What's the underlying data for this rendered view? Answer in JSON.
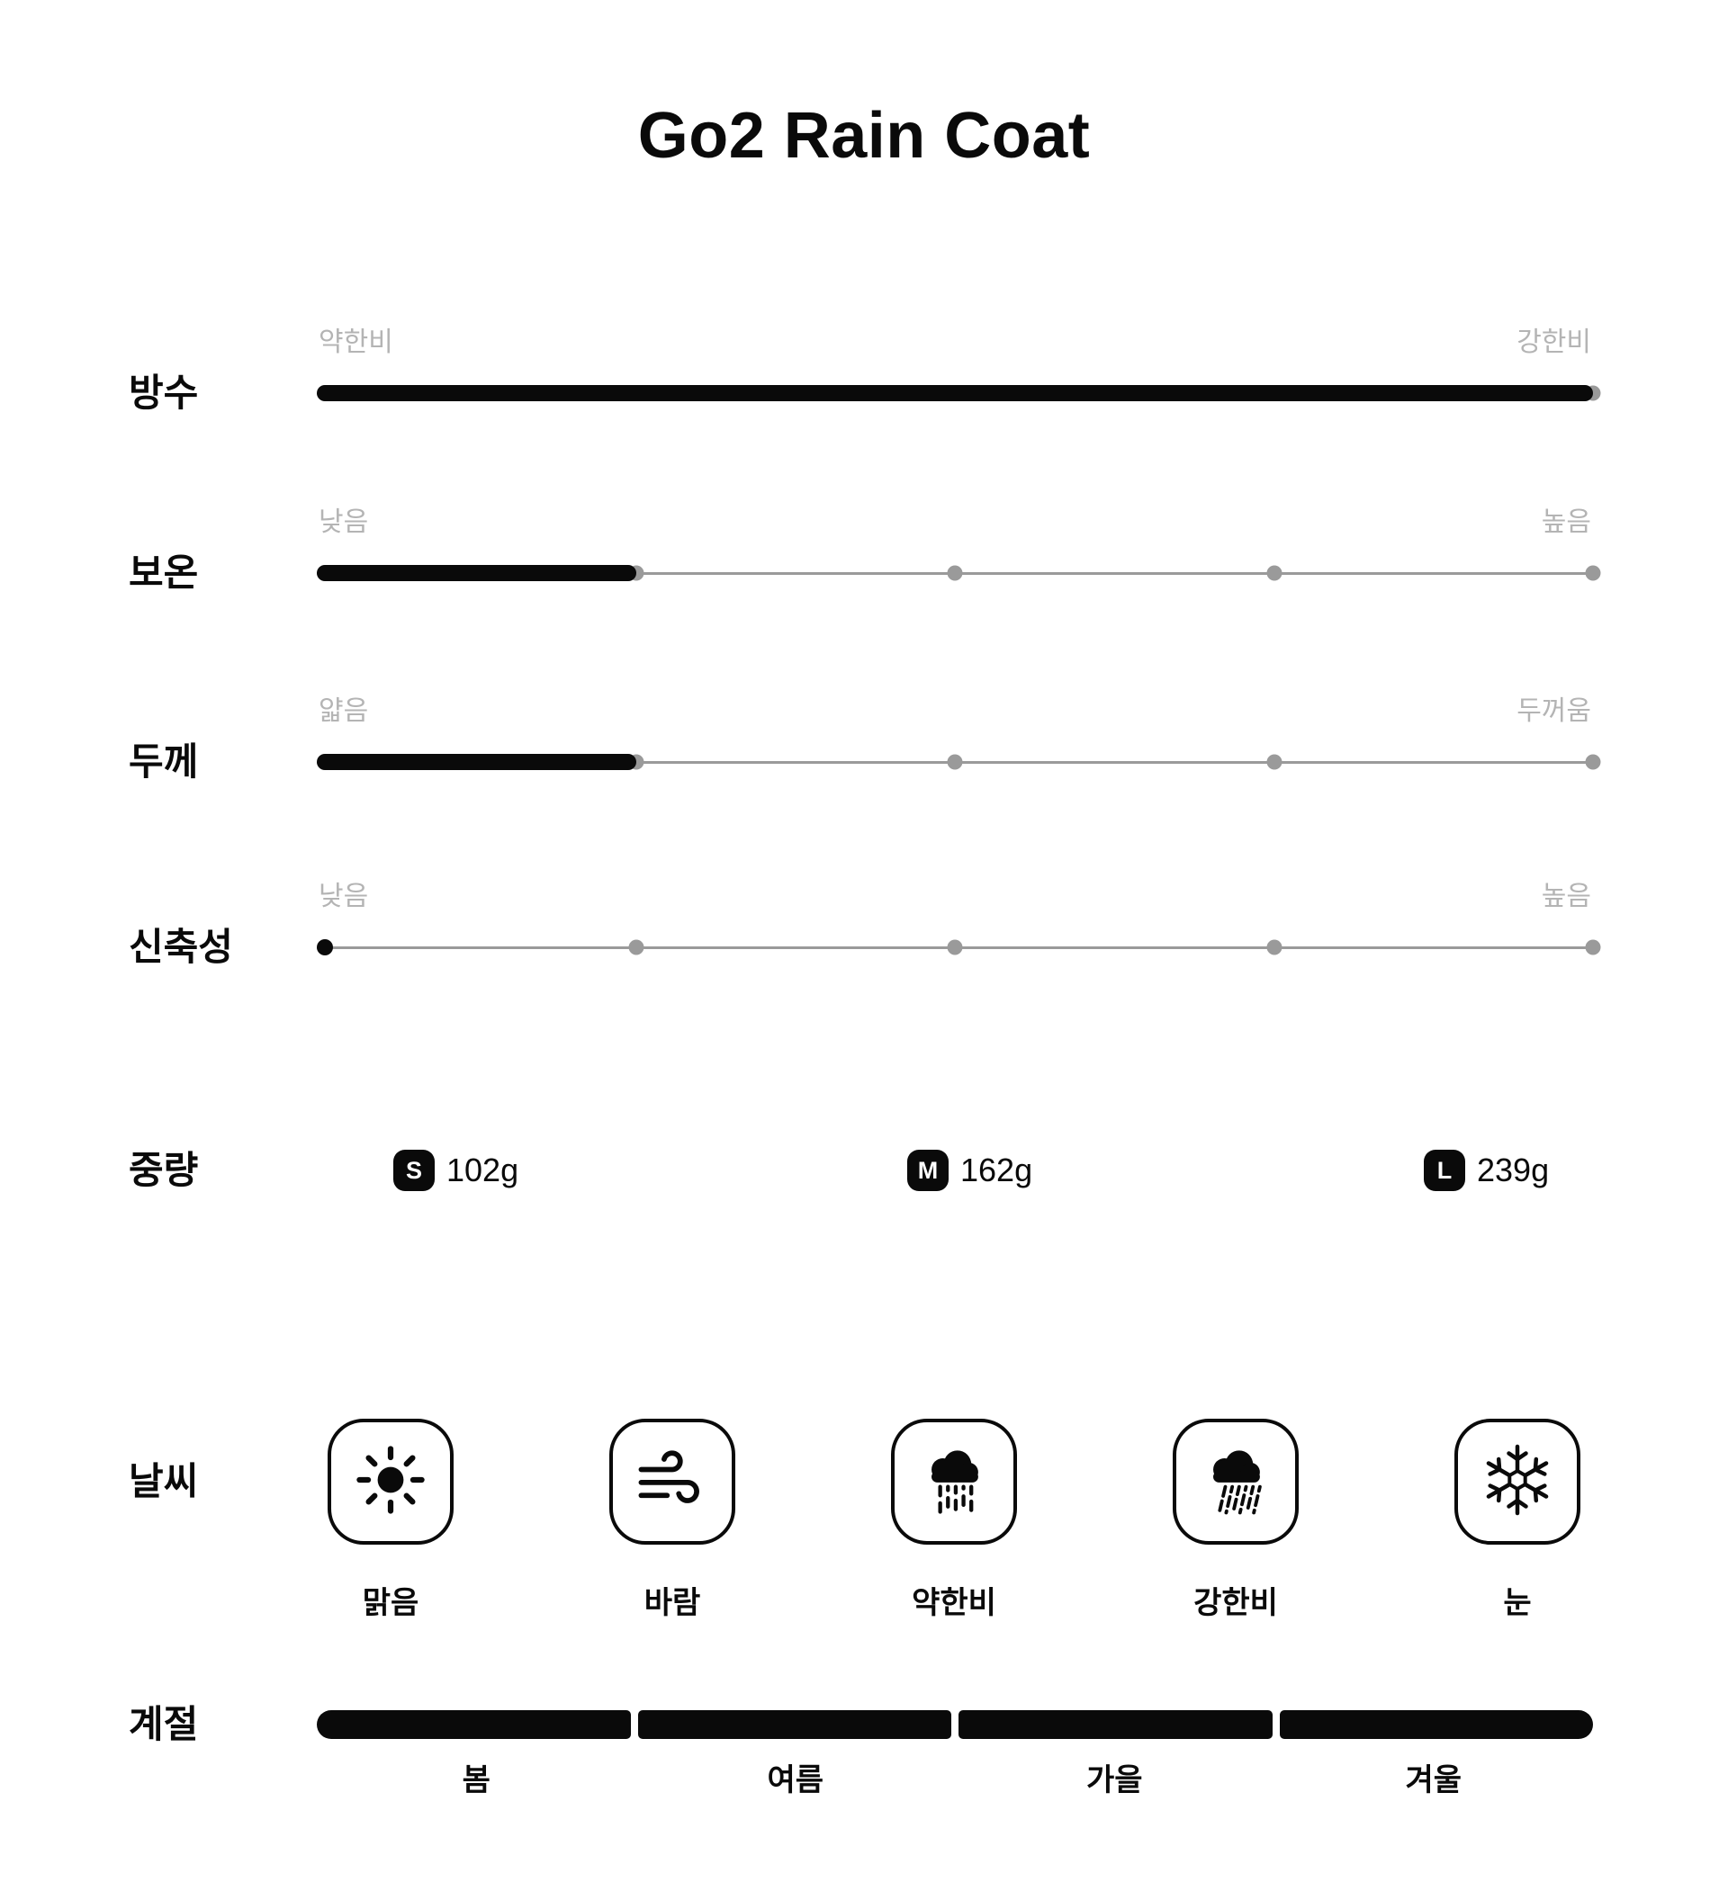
{
  "title": "Go2 Rain Coat",
  "colors": {
    "bar_black": "#0a0a0a",
    "track_gray": "#9a9a9a",
    "endpoint_label_gray": "#b4b4b4",
    "background": "#ffffff"
  },
  "ratings": [
    {
      "id": "waterproof",
      "label": "방수",
      "min_label": "약한비",
      "max_label": "강한비",
      "value": 5,
      "max": 5
    },
    {
      "id": "warmth",
      "label": "보온",
      "min_label": "낮음",
      "max_label": "높음",
      "value": 2,
      "max": 5
    },
    {
      "id": "thickness",
      "label": "두께",
      "min_label": "얇음",
      "max_label": "두꺼움",
      "value": 2,
      "max": 5
    },
    {
      "id": "stretch",
      "label": "신축성",
      "min_label": "낮음",
      "max_label": "높음",
      "value": 1,
      "max": 5
    }
  ],
  "weight": {
    "label": "중량",
    "items": [
      {
        "size": "S",
        "value": "102g"
      },
      {
        "size": "M",
        "value": "162g"
      },
      {
        "size": "L",
        "value": "239g"
      }
    ]
  },
  "weather": {
    "label": "날씨",
    "items": [
      {
        "icon": "sun-icon",
        "label": "맑음"
      },
      {
        "icon": "wind-icon",
        "label": "바람"
      },
      {
        "icon": "light-rain-icon",
        "label": "약한비"
      },
      {
        "icon": "heavy-rain-icon",
        "label": "강한비"
      },
      {
        "icon": "snowflake-icon",
        "label": "눈"
      }
    ]
  },
  "season": {
    "label": "계절",
    "items": [
      "봄",
      "여름",
      "가을",
      "겨울"
    ]
  },
  "chart_data": {
    "type": "bar",
    "title": "Go2 Rain Coat",
    "categories": [
      "방수",
      "보온",
      "두께",
      "신축성"
    ],
    "values": [
      5,
      2,
      2,
      1
    ],
    "value_range": [
      1,
      5
    ],
    "scale_labels": [
      [
        "약한비",
        "강한비"
      ],
      [
        "낮음",
        "높음"
      ],
      [
        "얇음",
        "두꺼움"
      ],
      [
        "낮음",
        "높음"
      ]
    ],
    "weights_g": {
      "S": 102,
      "M": 162,
      "L": 239
    },
    "weather": [
      "맑음",
      "바람",
      "약한비",
      "강한비",
      "눈"
    ],
    "seasons": [
      "봄",
      "여름",
      "가을",
      "겨울"
    ]
  }
}
